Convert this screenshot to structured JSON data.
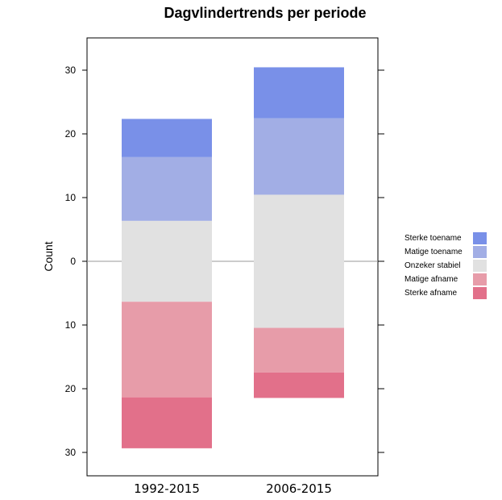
{
  "chart_data": {
    "type": "bar",
    "subtype": "diverging-stacked",
    "title": "Dagvlindertrends per periode",
    "ylabel": "Count",
    "xlabel": "",
    "categories": [
      "1992-2015",
      "2006-2015"
    ],
    "ylim": [
      -33,
      34
    ],
    "yticks": [
      30,
      20,
      10,
      0,
      -10,
      -20,
      -30
    ],
    "ytick_labels": [
      "30",
      "20",
      "10",
      "0",
      "10",
      "20",
      "30"
    ],
    "zero_line": true,
    "grid": false,
    "legend_position": "right",
    "series": [
      {
        "name": "Sterke toename",
        "color": "#7990e8",
        "values": [
          6,
          8
        ]
      },
      {
        "name": "Matige toename",
        "color": "#a2aee5",
        "values": [
          10,
          12
        ]
      },
      {
        "name": "Onzeker stabiel",
        "color": "#e1e1e1",
        "values": [
          12.7,
          20.9
        ],
        "centered": true
      },
      {
        "name": "Matige afname",
        "color": "#e79ca9",
        "values": [
          15,
          7
        ]
      },
      {
        "name": "Sterke afname",
        "color": "#e2708a",
        "values": [
          8,
          4
        ]
      }
    ]
  }
}
